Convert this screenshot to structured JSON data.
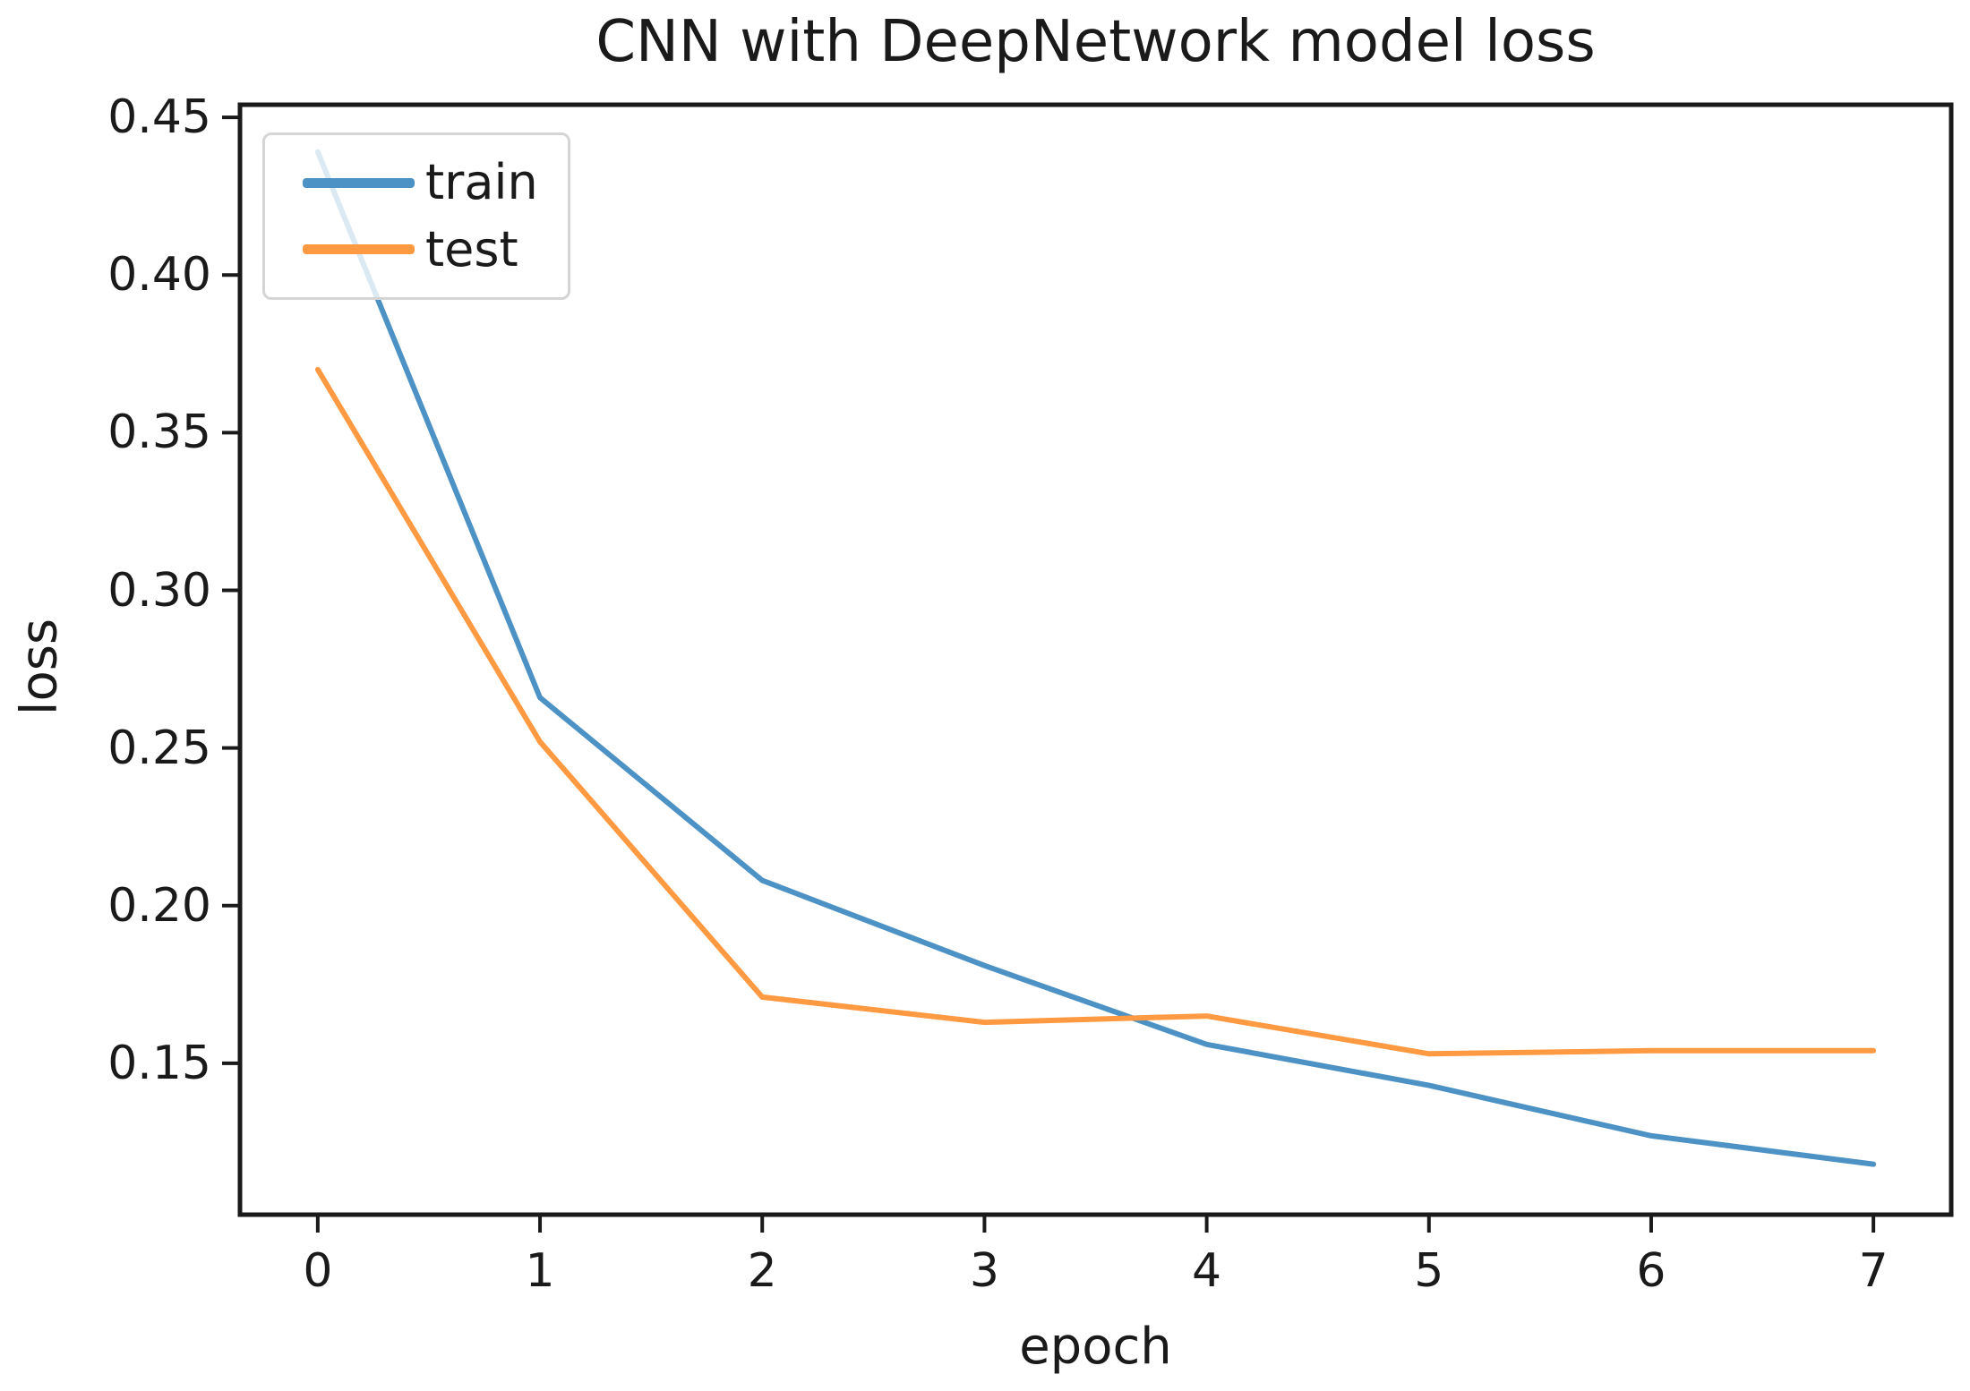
{
  "chart_data": {
    "type": "line",
    "title": "CNN with DeepNetwork model loss",
    "xlabel": "epoch",
    "ylabel": "loss",
    "x": [
      0,
      1,
      2,
      3,
      4,
      5,
      6,
      7
    ],
    "series": [
      {
        "name": "train",
        "color": "#4d92c4",
        "values": [
          0.439,
          0.266,
          0.208,
          0.181,
          0.156,
          0.143,
          0.127,
          0.118
        ]
      },
      {
        "name": "test",
        "color": "#ff9a42",
        "values": [
          0.37,
          0.252,
          0.171,
          0.163,
          0.165,
          0.153,
          0.154,
          0.154
        ]
      }
    ],
    "xticks": [
      0,
      1,
      2,
      3,
      4,
      5,
      6,
      7
    ],
    "yticks": [
      0.15,
      0.2,
      0.25,
      0.3,
      0.35,
      0.4,
      0.45
    ],
    "ytick_labels": [
      "0.15",
      "0.20",
      "0.25",
      "0.30",
      "0.35",
      "0.40",
      "0.45"
    ],
    "xlim": [
      -0.35,
      7.35
    ],
    "ylim": [
      0.102,
      0.454
    ],
    "grid": false,
    "legend_position": "upper left",
    "axis_color": "#1a1a1a"
  }
}
